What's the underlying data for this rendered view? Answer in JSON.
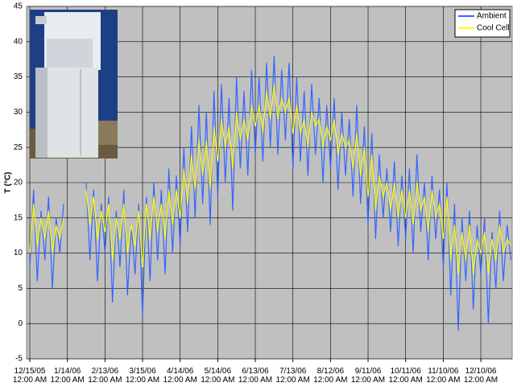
{
  "chart_data": {
    "type": "line",
    "y_label": "T (°C)",
    "categories": [
      "12/15/05 12:00 AM",
      null,
      null,
      null,
      null,
      null,
      null,
      null,
      null,
      null,
      "1/14/06 12:00 AM",
      null,
      null,
      null,
      null,
      null,
      null,
      null,
      null,
      null,
      "2/13/06 12:00 AM",
      null,
      null,
      null,
      null,
      null,
      null,
      null,
      null,
      null,
      "3/15/06 12:00 AM",
      null,
      null,
      null,
      null,
      null,
      null,
      null,
      null,
      null,
      "4/14/06 12:00 AM",
      null,
      null,
      null,
      null,
      null,
      null,
      null,
      null,
      null,
      "5/14/06 12:00 AM",
      null,
      null,
      null,
      null,
      null,
      null,
      null,
      null,
      null,
      "6/13/06 12:00 AM",
      null,
      null,
      null,
      null,
      null,
      null,
      null,
      null,
      null,
      "7/13/06 12:00 AM",
      null,
      null,
      null,
      null,
      null,
      null,
      null,
      null,
      null,
      "8/12/06 12:00 AM",
      null,
      null,
      null,
      null,
      null,
      null,
      null,
      null,
      null,
      "9/11/06 12:00 AM",
      null,
      null,
      null,
      null,
      null,
      null,
      null,
      null,
      null,
      "10/11/06 12:00 AM",
      null,
      null,
      null,
      null,
      null,
      null,
      null,
      null,
      null,
      "11/10/06 12:00 AM",
      null,
      null,
      null,
      null,
      null,
      null,
      null,
      null,
      null,
      "12/10/06 12:00 AM",
      null,
      null,
      null,
      null,
      null,
      null,
      null,
      null
    ],
    "series": [
      {
        "name": "Ambient",
        "color": "#3366ff",
        "values": [
          8,
          19,
          6,
          16,
          9,
          18,
          5,
          15,
          10,
          17,
          null,
          null,
          null,
          null,
          null,
          20,
          9,
          19,
          6,
          17,
          10,
          18,
          3,
          16,
          8,
          19,
          4,
          14,
          7,
          17,
          1,
          18,
          6,
          20,
          9,
          19,
          7,
          22,
          10,
          21,
          11,
          25,
          13,
          28,
          15,
          31,
          17,
          30,
          14,
          33,
          18,
          34,
          20,
          32,
          16,
          35,
          22,
          33,
          21,
          36,
          24,
          35,
          23,
          37,
          25,
          38,
          24,
          36,
          26,
          37,
          22,
          35,
          23,
          33,
          21,
          34,
          24,
          32,
          20,
          31,
          22,
          32,
          19,
          30,
          21,
          29,
          18,
          31,
          17,
          28,
          14,
          27,
          12,
          24,
          15,
          22,
          13,
          23,
          11,
          21,
          12,
          22,
          10,
          24,
          13,
          20,
          9,
          21,
          12,
          19,
          8,
          20,
          4,
          17,
          -1,
          15,
          6,
          16,
          2,
          14,
          7,
          15,
          0,
          13,
          5,
          16,
          6,
          14,
          9
        ]
      },
      {
        "name": "Cool Cell",
        "color": "#ffff00",
        "values": [
          10,
          17,
          11,
          15,
          12,
          16,
          10,
          14,
          12,
          15,
          null,
          null,
          null,
          null,
          null,
          19,
          14,
          18,
          12,
          16,
          13,
          17,
          9,
          15,
          12,
          17,
          10,
          14,
          11,
          16,
          8,
          17,
          12,
          18,
          13,
          17,
          12,
          19,
          14,
          19,
          15,
          22,
          17,
          24,
          19,
          26,
          21,
          26,
          19,
          28,
          23,
          29,
          25,
          28,
          22,
          30,
          26,
          29,
          26,
          31,
          28,
          31,
          27,
          33,
          29,
          34,
          29,
          32,
          30,
          32,
          27,
          31,
          27,
          29,
          25,
          30,
          28,
          29,
          25,
          28,
          26,
          29,
          24,
          27,
          25,
          26,
          22,
          27,
          21,
          25,
          18,
          24,
          16,
          21,
          18,
          20,
          16,
          20,
          15,
          19,
          15,
          19,
          14,
          20,
          16,
          18,
          13,
          19,
          15,
          17,
          12,
          18,
          9,
          14,
          7,
          13,
          9,
          14,
          7,
          12,
          10,
          13,
          7,
          12,
          9,
          14,
          10,
          12,
          11
        ]
      }
    ],
    "ylim": [
      -5,
      45
    ],
    "yticks": [
      -5,
      0,
      5,
      10,
      15,
      20,
      25,
      30,
      35,
      40,
      45
    ],
    "grid": true,
    "legend": "top-right"
  }
}
